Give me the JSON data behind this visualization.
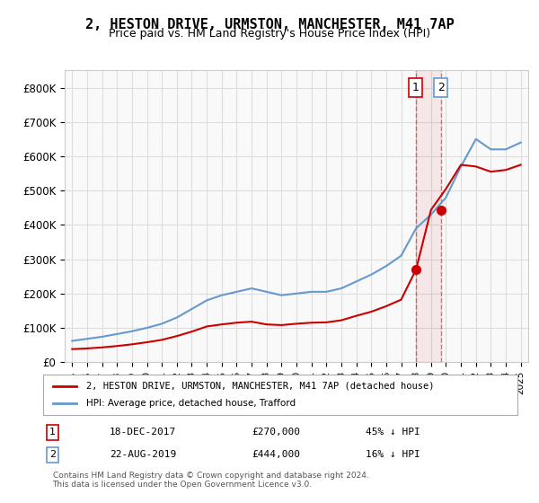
{
  "title": "2, HESTON DRIVE, URMSTON, MANCHESTER, M41 7AP",
  "subtitle": "Price paid vs. HM Land Registry's House Price Index (HPI)",
  "ylabel": "",
  "ylim": [
    0,
    850000
  ],
  "yticks": [
    0,
    100000,
    200000,
    300000,
    400000,
    500000,
    600000,
    700000,
    800000
  ],
  "ytick_labels": [
    "£0",
    "£100K",
    "£200K",
    "£300K",
    "£400K",
    "£500K",
    "£600K",
    "£700K",
    "£800K"
  ],
  "hpi_color": "#6699cc",
  "price_color": "#cc0000",
  "transaction1_date": "18-DEC-2017",
  "transaction1_price": 270000,
  "transaction1_pct": "45% ↓ HPI",
  "transaction2_date": "22-AUG-2019",
  "transaction2_price": 444000,
  "transaction2_pct": "16% ↓ HPI",
  "legend_label1": "2, HESTON DRIVE, URMSTON, MANCHESTER, M41 7AP (detached house)",
  "legend_label2": "HPI: Average price, detached house, Trafford",
  "footer": "Contains HM Land Registry data © Crown copyright and database right 2024.\nThis data is licensed under the Open Government Licence v3.0.",
  "background_color": "#ffffff",
  "plot_bg_color": "#f9f9f9",
  "grid_color": "#dddddd",
  "vline_color": "#cc0000",
  "vline_alpha": 0.5,
  "marker_fill_1": "#cc0000",
  "marker_fill_2": "#cc0000",
  "hpi_years": [
    1995,
    1996,
    1997,
    1998,
    1999,
    2000,
    2001,
    2002,
    2003,
    2004,
    2005,
    2006,
    2007,
    2008,
    2009,
    2010,
    2011,
    2012,
    2013,
    2014,
    2015,
    2016,
    2017,
    2018,
    2019,
    2020,
    2021,
    2022,
    2023,
    2024,
    2025
  ],
  "hpi_values": [
    62000,
    68000,
    74000,
    82000,
    90000,
    100000,
    112000,
    130000,
    155000,
    180000,
    195000,
    205000,
    215000,
    205000,
    195000,
    200000,
    205000,
    205000,
    215000,
    235000,
    255000,
    280000,
    310000,
    390000,
    430000,
    480000,
    570000,
    650000,
    620000,
    620000,
    640000
  ],
  "price_years": [
    1995,
    1996,
    1997,
    1998,
    1999,
    2000,
    2001,
    2002,
    2003,
    2004,
    2005,
    2006,
    2007,
    2008,
    2009,
    2010,
    2011,
    2012,
    2013,
    2014,
    2015,
    2016,
    2017,
    2018,
    2019,
    2020,
    2021,
    2022,
    2023,
    2024,
    2025
  ],
  "price_values": [
    38000,
    40000,
    43000,
    47000,
    52000,
    58000,
    65000,
    76000,
    89000,
    104000,
    110000,
    115000,
    118000,
    110000,
    108000,
    112000,
    115000,
    116000,
    122000,
    135000,
    147000,
    163000,
    182000,
    270000,
    444000,
    505000,
    575000,
    570000,
    555000,
    560000,
    575000
  ],
  "xlim_start": 1994.5,
  "xlim_end": 2025.5,
  "xtick_years": [
    1995,
    1996,
    1997,
    1998,
    1999,
    2000,
    2001,
    2002,
    2003,
    2004,
    2005,
    2006,
    2007,
    2008,
    2009,
    2010,
    2011,
    2012,
    2013,
    2014,
    2015,
    2016,
    2017,
    2018,
    2019,
    2020,
    2021,
    2022,
    2023,
    2024,
    2025
  ]
}
